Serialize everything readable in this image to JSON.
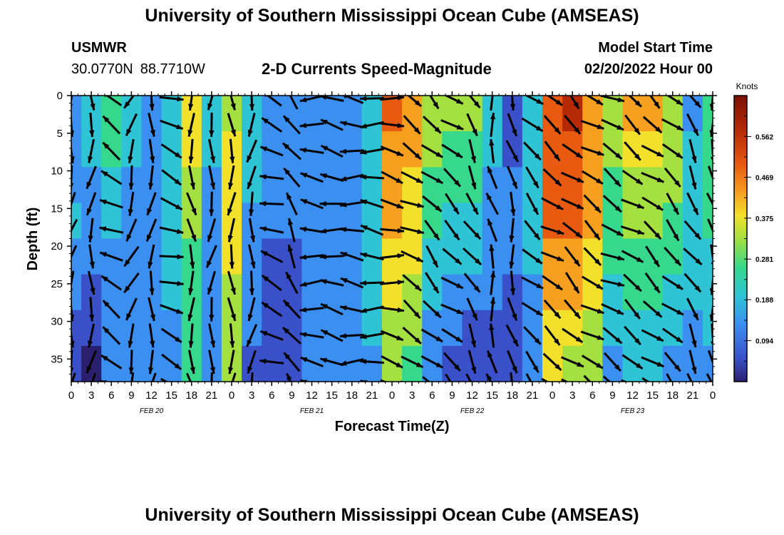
{
  "header": {
    "title": "University of Southern Mississippi Ocean Cube (AMSEAS)",
    "station": "USMWR",
    "lat": "30.0770N",
    "lon": "88.7710W",
    "subtitle": "2-D Currents Speed-Magnitude",
    "model_start_label": "Model Start Time",
    "model_start_value": "02/20/2022 Hour 00"
  },
  "footer": {
    "title": "University of Southern Mississippi Ocean Cube (AMSEAS)"
  },
  "chart_data": {
    "type": "heatmap",
    "title": "2-D Currents Speed-Magnitude",
    "xlabel": "Forecast Time(Z)",
    "ylabel": "Depth (ft)",
    "x_tick_labels": [
      "0",
      "3",
      "6",
      "9",
      "12",
      "15",
      "18",
      "21",
      "0",
      "3",
      "6",
      "9",
      "12",
      "15",
      "18",
      "21",
      "0",
      "3",
      "6",
      "9",
      "12",
      "15",
      "18",
      "21",
      "0",
      "3",
      "6",
      "9",
      "12",
      "15",
      "18",
      "21",
      "0"
    ],
    "date_labels": [
      {
        "label": "FEB 20",
        "hour": 12
      },
      {
        "label": "FEB 21",
        "hour": 36
      },
      {
        "label": "FEB 22",
        "hour": 60
      },
      {
        "label": "FEB 23",
        "hour": 84
      }
    ],
    "xlim": [
      0,
      96
    ],
    "ylim": [
      0,
      38
    ],
    "y_ticks": [
      0,
      5,
      10,
      15,
      20,
      25,
      30,
      35
    ],
    "colorbar": {
      "label": "Knots",
      "ticks": [
        "0.562",
        "0.469",
        "0.375",
        "0.281",
        "0.188",
        "0.094"
      ],
      "range": [
        0,
        0.656
      ]
    },
    "colors": {
      "c0": "#2a1f6e",
      "c1": "#3a50c8",
      "c2": "#3b8ff0",
      "c3": "#2ec4d6",
      "c4": "#36d98c",
      "c5": "#a4e040",
      "c6": "#f2e02a",
      "c7": "#f7a020",
      "c8": "#e85a10",
      "c9": "#b52a05",
      "c10": "#7a1004"
    },
    "speed_profile_note": "approximate speed (knots) per forecast column: surface, mid-depth, bottom",
    "speed_profile": [
      {
        "hour": 0,
        "s": [
          0.15,
          0.17,
          0.06
        ]
      },
      {
        "hour": 3,
        "s": [
          0.2,
          0.12,
          0.03
        ]
      },
      {
        "hour": 6,
        "s": [
          0.28,
          0.18,
          0.1
        ]
      },
      {
        "hour": 9,
        "s": [
          0.18,
          0.14,
          0.12
        ]
      },
      {
        "hour": 12,
        "s": [
          0.14,
          0.14,
          0.16
        ]
      },
      {
        "hour": 15,
        "s": [
          0.2,
          0.2,
          0.14
        ]
      },
      {
        "hour": 18,
        "s": [
          0.42,
          0.3,
          0.26
        ]
      },
      {
        "hour": 21,
        "s": [
          0.2,
          0.14,
          0.1
        ]
      },
      {
        "hour": 24,
        "s": [
          0.36,
          0.38,
          0.32
        ]
      },
      {
        "hour": 27,
        "s": [
          0.2,
          0.16,
          0.08
        ]
      },
      {
        "hour": 30,
        "s": [
          0.14,
          0.1,
          0.08
        ]
      },
      {
        "hour": 33,
        "s": [
          0.12,
          0.1,
          0.08
        ]
      },
      {
        "hour": 36,
        "s": [
          0.12,
          0.1,
          0.1
        ]
      },
      {
        "hour": 39,
        "s": [
          0.1,
          0.1,
          0.1
        ]
      },
      {
        "hour": 42,
        "s": [
          0.16,
          0.12,
          0.14
        ]
      },
      {
        "hour": 45,
        "s": [
          0.2,
          0.18,
          0.16
        ]
      },
      {
        "hour": 48,
        "s": [
          0.5,
          0.45,
          0.3
        ]
      },
      {
        "hour": 51,
        "s": [
          0.46,
          0.4,
          0.26
        ]
      },
      {
        "hour": 54,
        "s": [
          0.34,
          0.24,
          0.12
        ]
      },
      {
        "hour": 57,
        "s": [
          0.3,
          0.22,
          0.08
        ]
      },
      {
        "hour": 60,
        "s": [
          0.3,
          0.2,
          0.06
        ]
      },
      {
        "hour": 63,
        "s": [
          0.22,
          0.12,
          0.08
        ]
      },
      {
        "hour": 66,
        "s": [
          0.06,
          0.14,
          0.05
        ]
      },
      {
        "hour": 69,
        "s": [
          0.2,
          0.18,
          0.14
        ]
      },
      {
        "hour": 72,
        "s": [
          0.52,
          0.5,
          0.4
        ]
      },
      {
        "hour": 75,
        "s": [
          0.56,
          0.52,
          0.34
        ]
      },
      {
        "hour": 78,
        "s": [
          0.46,
          0.44,
          0.3
        ]
      },
      {
        "hour": 81,
        "s": [
          0.32,
          0.28,
          0.14
        ]
      },
      {
        "hour": 84,
        "s": [
          0.44,
          0.3,
          0.2
        ]
      },
      {
        "hour": 87,
        "s": [
          0.46,
          0.3,
          0.2
        ]
      },
      {
        "hour": 90,
        "s": [
          0.36,
          0.26,
          0.16
        ]
      },
      {
        "hour": 93,
        "s": [
          0.16,
          0.22,
          0.12
        ]
      },
      {
        "hour": 96,
        "s": [
          0.28,
          0.24,
          0.16
        ]
      }
    ],
    "vectors_note": "approximate flow direction in degrees (0 = right/east, 90 = up/north) per forecast column",
    "vectors": [
      {
        "hour": 0,
        "dir": -100
      },
      {
        "hour": 3,
        "dir": -95
      },
      {
        "hour": 6,
        "dir": 150
      },
      {
        "hour": 9,
        "dir": -110
      },
      {
        "hour": 12,
        "dir": -95
      },
      {
        "hour": 15,
        "dir": -20
      },
      {
        "hour": 18,
        "dir": -85
      },
      {
        "hour": 21,
        "dir": -95
      },
      {
        "hour": 24,
        "dir": -90
      },
      {
        "hour": 27,
        "dir": -95
      },
      {
        "hour": 30,
        "dir": 160
      },
      {
        "hour": 33,
        "dir": 120
      },
      {
        "hour": 36,
        "dir": 175
      },
      {
        "hour": 39,
        "dir": 170
      },
      {
        "hour": 42,
        "dir": 175
      },
      {
        "hour": 45,
        "dir": 175
      },
      {
        "hour": 48,
        "dir": -10
      },
      {
        "hour": 51,
        "dir": -30
      },
      {
        "hour": 54,
        "dir": -45
      },
      {
        "hour": 57,
        "dir": -40
      },
      {
        "hour": 60,
        "dir": -60
      },
      {
        "hour": 63,
        "dir": 100
      },
      {
        "hour": 66,
        "dir": -80
      },
      {
        "hour": 69,
        "dir": -45
      },
      {
        "hour": 72,
        "dir": -35
      },
      {
        "hour": 75,
        "dir": -40
      },
      {
        "hour": 78,
        "dir": -35
      },
      {
        "hour": 81,
        "dir": -30
      },
      {
        "hour": 84,
        "dir": -35
      },
      {
        "hour": 87,
        "dir": -40
      },
      {
        "hour": 90,
        "dir": -45
      },
      {
        "hour": 93,
        "dir": -60
      },
      {
        "hour": 96,
        "dir": -80
      }
    ]
  }
}
